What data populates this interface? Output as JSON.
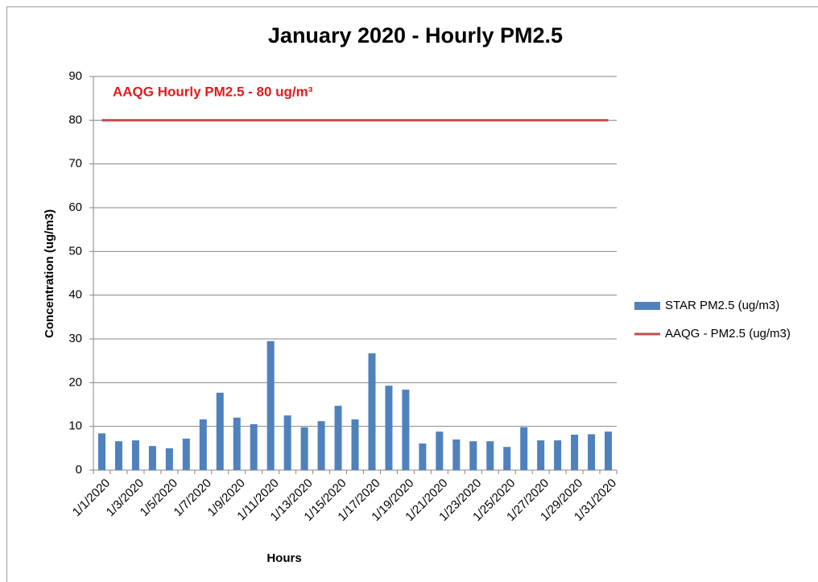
{
  "chart_data": {
    "type": "bar",
    "title": "January 2020 - Hourly PM2.5",
    "x_label": "Hours",
    "y_label": "Concentration (ug/m3)",
    "annotation": "AAQG Hourly PM2.5 - 80 ug/m³",
    "annotation_color": "#e31a1c",
    "categories": [
      "1/1/2020",
      null,
      "1/3/2020",
      null,
      "1/5/2020",
      null,
      "1/7/2020",
      null,
      "1/9/2020",
      null,
      "1/11/2020",
      null,
      "1/13/2020",
      null,
      "1/15/2020",
      null,
      "1/17/2020",
      null,
      "1/19/2020",
      null,
      "1/21/2020",
      null,
      "1/23/2020",
      null,
      "1/25/2020",
      null,
      "1/27/2020",
      null,
      "1/29/2020",
      null,
      "1/31/2020"
    ],
    "series": [
      {
        "name": "STAR PM2.5 (ug/m3)",
        "type": "bar",
        "color": "#4f81bd",
        "values": [
          8.4,
          6.6,
          6.8,
          5.5,
          5.0,
          7.2,
          11.6,
          17.7,
          12.0,
          10.5,
          29.5,
          12.5,
          9.8,
          11.2,
          14.7,
          11.6,
          26.7,
          19.3,
          18.4,
          6.1,
          8.8,
          7.0,
          6.6,
          6.6,
          5.3,
          9.8,
          6.8,
          6.8,
          8.1,
          8.2,
          8.8
        ]
      },
      {
        "name": "AAQG - PM2.5 (ug/m3)",
        "type": "line",
        "color": "#c0504d",
        "values": [
          80,
          80,
          80,
          80,
          80,
          80,
          80,
          80,
          80,
          80,
          80,
          80,
          80,
          80,
          80,
          80,
          80,
          80,
          80,
          80,
          80,
          80,
          80,
          80,
          80,
          80,
          80,
          80,
          80,
          80,
          80
        ]
      }
    ],
    "ylim": [
      0,
      90
    ],
    "yticks": [
      0,
      10,
      20,
      30,
      40,
      50,
      60,
      70,
      80,
      90
    ],
    "grid": true,
    "legend": "right"
  }
}
